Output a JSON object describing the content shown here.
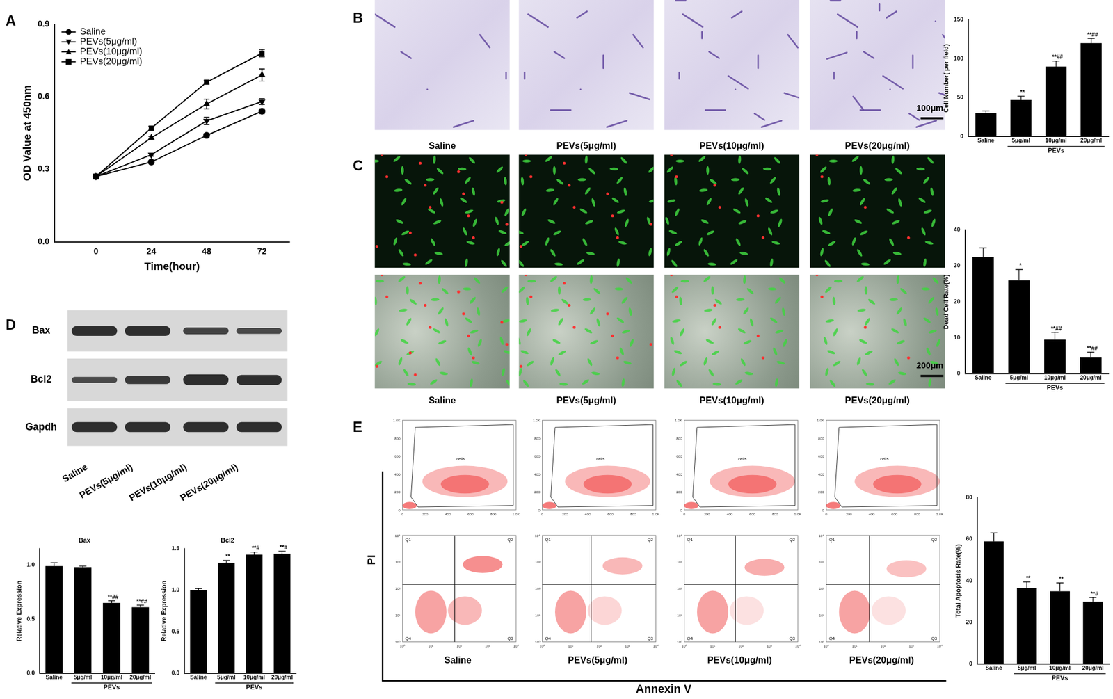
{
  "figure": {
    "panels": [
      "A",
      "B",
      "C",
      "D",
      "E"
    ],
    "group_labels": [
      "Saline",
      "PEVs(5μg/ml)",
      "PEVs(10μg/ml)",
      "PEVs(20μg/ml)"
    ],
    "scale_bars": {
      "B": "100μm",
      "C": "200μm"
    },
    "blot": {
      "rows": [
        "Bax",
        "Bcl2",
        "Gapdh"
      ]
    },
    "flow": {
      "y_label": "PI",
      "x_label": "Annexin V",
      "gate_label": "cells",
      "quadrants": [
        "Q1",
        "Q2",
        "Q3",
        "Q4"
      ],
      "gate_ticks": [
        "0",
        "200",
        "400",
        "600",
        "800",
        "1.0K"
      ],
      "log_ticks": [
        "10⁰",
        "10¹",
        "10²",
        "10³",
        "10⁴"
      ]
    }
  },
  "chart_data": [
    {
      "type": "line",
      "x_label": "Time(hour)",
      "y_label": "OD Value at 450nm",
      "x": [
        0,
        24,
        48,
        72
      ],
      "xlim": [
        -18,
        84
      ],
      "xticks": [
        0,
        24,
        48,
        72
      ],
      "ylim": [
        0,
        0.9
      ],
      "yticks": [
        {
          "value": 0,
          "label": "0.0"
        },
        0.3,
        0.6,
        0.9
      ],
      "grid": false,
      "legend": "top-left",
      "series": [
        {
          "name": "Saline",
          "color": "#000000",
          "marker": "circle",
          "values": [
            0.27,
            0.33,
            0.44,
            0.54
          ],
          "errors": [
            0.01,
            0.005,
            0.008,
            0.01
          ]
        },
        {
          "name": "PEVs(5μg/ml)",
          "color": "#000000",
          "marker": "triangle-down",
          "values": [
            0.27,
            0.36,
            0.5,
            0.58
          ],
          "errors": [
            0.008,
            0.006,
            0.015,
            0.012
          ]
        },
        {
          "name": "PEVs(10μg/ml)",
          "color": "#000000",
          "marker": "triangle-up",
          "values": [
            0.27,
            0.43,
            0.57,
            0.69
          ],
          "errors": [
            0.008,
            0.006,
            0.02,
            0.025
          ]
        },
        {
          "name": "PEVs(20μg/ml)",
          "color": "#000000",
          "marker": "square",
          "values": [
            0.27,
            0.47,
            0.66,
            0.78
          ],
          "errors": [
            0.01,
            0.008,
            0.008,
            0.015
          ]
        }
      ]
    },
    {
      "type": "bar",
      "y_label": "Cell Number( per field)",
      "categories": [
        "Saline",
        "5μg/ml",
        "10μg/ml",
        "20μg/ml"
      ],
      "group_label": "PEVs",
      "values": [
        30,
        47,
        90,
        120
      ],
      "errors": [
        3,
        5,
        7,
        6
      ],
      "annotations": [
        null,
        "**",
        "**##",
        "**##"
      ],
      "color": "#000000",
      "ylim": [
        0,
        150
      ],
      "yticks": [
        0,
        50,
        100,
        150
      ],
      "grid": false
    },
    {
      "type": "bar",
      "y_label": "Dead Cell Rate(%)",
      "categories": [
        "Saline",
        "5μg/ml",
        "10μg/ml",
        "20μg/ml"
      ],
      "group_label": "PEVs",
      "values": [
        32.5,
        26,
        9.5,
        4.5
      ],
      "errors": [
        2.5,
        3,
        2,
        1.5
      ],
      "annotations": [
        null,
        "*",
        "**##",
        "**##"
      ],
      "color": "#000000",
      "ylim": [
        0,
        40
      ],
      "yticks": [
        0,
        10,
        20,
        30,
        40
      ],
      "grid": false
    },
    {
      "type": "bar",
      "title": "Bax",
      "y_label": "Relative Expression",
      "categories": [
        "Saline",
        "5μg/ml",
        "10μg/ml",
        "20μg/ml"
      ],
      "group_label": "PEVs",
      "values": [
        0.99,
        0.98,
        0.65,
        0.61
      ],
      "errors": [
        0.03,
        0.01,
        0.02,
        0.02
      ],
      "annotations": [
        null,
        null,
        "**##",
        "**##"
      ],
      "color": "#000000",
      "ylim": [
        0,
        1.15
      ],
      "yticks": [
        {
          "value": 0,
          "label": "0.0"
        },
        0.5,
        {
          "value": 1,
          "label": "1.0"
        }
      ],
      "grid": false
    },
    {
      "type": "bar",
      "title": "Bcl2",
      "y_label": "Relative Expression",
      "categories": [
        "Saline",
        "5μg/ml",
        "10μg/ml",
        "20μg/ml"
      ],
      "group_label": "PEVs",
      "values": [
        1.0,
        1.33,
        1.43,
        1.44
      ],
      "errors": [
        0.02,
        0.03,
        0.03,
        0.03
      ],
      "annotations": [
        null,
        "**",
        "**#",
        "**#"
      ],
      "color": "#000000",
      "ylim": [
        0,
        1.5
      ],
      "yticks": [
        {
          "value": 0,
          "label": "0.0"
        },
        0.5,
        {
          "value": 1,
          "label": "1.0"
        },
        1.5
      ],
      "grid": false
    },
    {
      "type": "bar",
      "y_label": "Total Apoptosis Rate(%)",
      "categories": [
        "Saline",
        "5μg/ml",
        "10μg/ml",
        "20μg/ml"
      ],
      "group_label": "PEVs",
      "values": [
        59,
        36.5,
        35,
        30
      ],
      "errors": [
        4,
        3,
        4,
        2
      ],
      "annotations": [
        null,
        "**",
        "**",
        "**#"
      ],
      "color": "#000000",
      "ylim": [
        0,
        80
      ],
      "yticks": [
        0,
        20,
        40,
        60,
        80
      ],
      "grid": false
    }
  ]
}
